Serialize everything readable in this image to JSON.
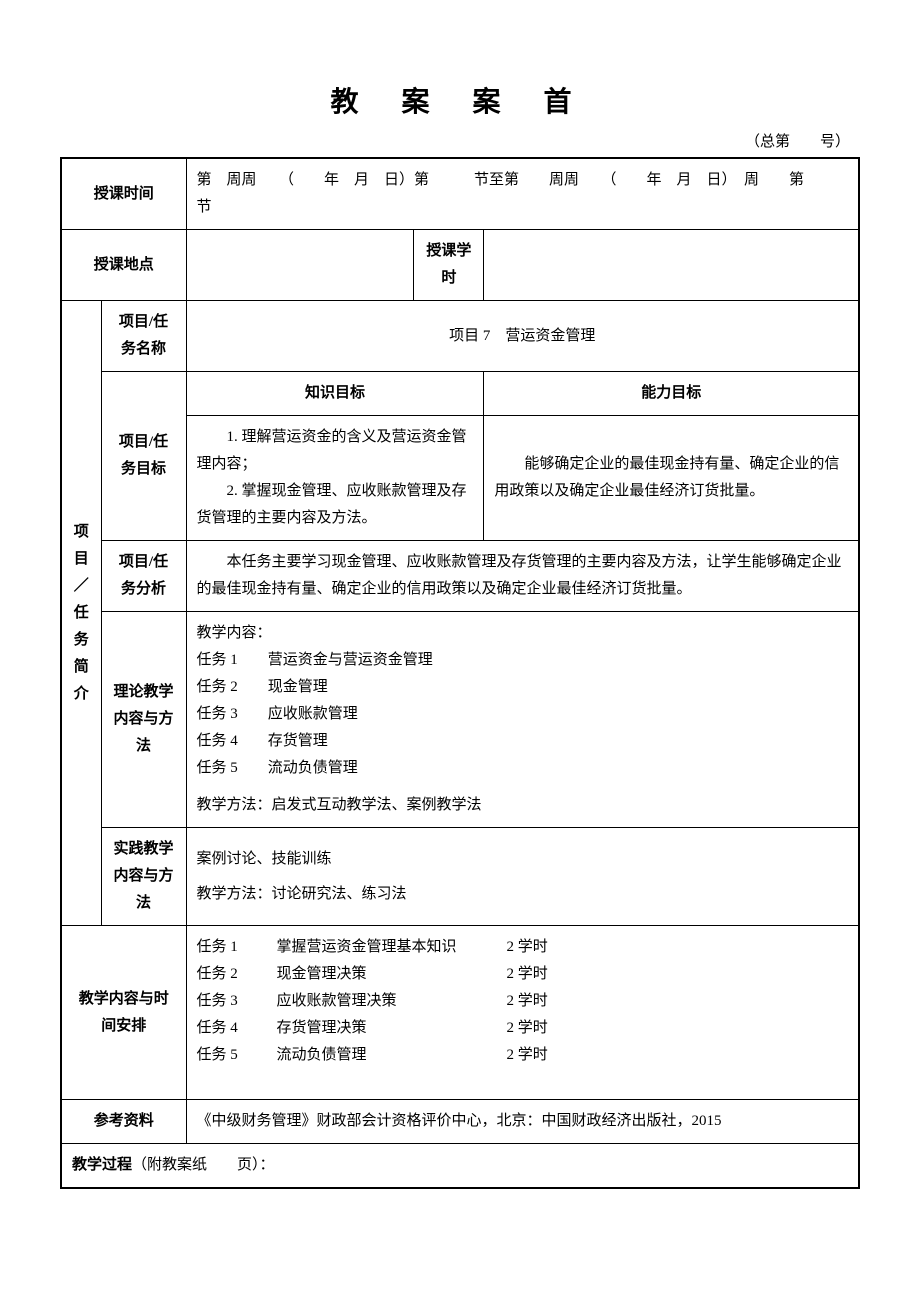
{
  "title": "教 案 案 首",
  "subtitle": "（总第　　号）",
  "labels": {
    "time": "授课时间",
    "time_value": "第　周周　　（　　年　月　日）第　　　节至第　　周周　　（　　年　月　日）　周　　第　　节",
    "place": "授课地点",
    "hours": "授课学时",
    "vside": "项目／任务简介",
    "proj_name": "项目/任务名称",
    "proj_goal": "项目/任务目标",
    "proj_analysis": "项目/任务分析",
    "theory": "理论教学内容与方法",
    "practice": "实践教学内容与方法",
    "schedule": "教学内容与时间安排",
    "refs": "参考资料",
    "process": "教学过程",
    "process_tail": "（附教案纸　　页）："
  },
  "proj_name_value": "项目 7　营运资金管理",
  "goal": {
    "knowledge_hdr": "知识目标",
    "ability_hdr": "能力目标",
    "knowledge_1": "1. 理解营运资金的含义及营运资金管理内容；",
    "knowledge_2": "2. 掌握现金管理、应收账款管理及存货管理的主要内容及方法。",
    "ability": "能够确定企业的最佳现金持有量、确定企业的信用政策以及确定企业最佳经济订货批量。"
  },
  "analysis": "本任务主要学习现金管理、应收账款管理及存货管理的主要内容及方法，让学生能够确定企业的最佳现金持有量、确定企业的信用政策以及确定企业最佳经济订货批量。",
  "theory": {
    "hdr": "教学内容：",
    "t1": "任务 1　　营运资金与营运资金管理",
    "t2": "任务 2　　现金管理",
    "t3": "任务 3　　应收账款管理",
    "t4": "任务 4　　存货管理",
    "t5": "任务 5　　流动负债管理",
    "method": "教学方法：启发式互动教学法、案例教学法"
  },
  "practice": {
    "line1": "案例讨论、技能训练",
    "line2": "教学方法：讨论研究法、练习法"
  },
  "schedule": [
    {
      "task": "任务 1",
      "desc": "掌握营运资金管理基本知识",
      "hours": "2 学时"
    },
    {
      "task": "任务 2",
      "desc": "现金管理决策",
      "hours": "2 学时"
    },
    {
      "task": "任务 3",
      "desc": "应收账款管理决策",
      "hours": "2 学时"
    },
    {
      "task": "任务 4",
      "desc": "存货管理决策",
      "hours": "2 学时"
    },
    {
      "task": "任务 5",
      "desc": "流动负债管理",
      "hours": "2 学时"
    }
  ],
  "refs": "《中级财务管理》财政部会计资格评价中心，北京：中国财政经济出版社，2015"
}
